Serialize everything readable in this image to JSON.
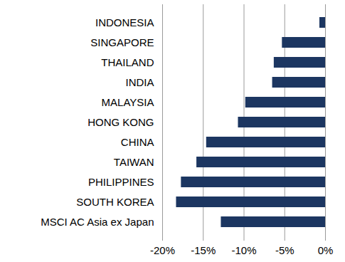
{
  "chart_data": {
    "type": "bar",
    "orientation": "horizontal",
    "categories": [
      "INDONESIA",
      "SINGAPORE",
      "THAILAND",
      "INDIA",
      "MALAYSIA",
      "HONG KONG",
      "CHINA",
      "TAIWAN",
      "PHILIPPINES",
      "SOUTH KOREA",
      "MSCI AC Asia ex Japan"
    ],
    "values": [
      -0.7,
      -5.3,
      -6.3,
      -6.5,
      -9.8,
      -10.7,
      -14.6,
      -15.8,
      -17.7,
      -18.3,
      -12.8
    ],
    "color": "#1c3661",
    "xlim": [
      -20,
      0
    ],
    "xticks": [
      {
        "value": -20,
        "label": "-20%"
      },
      {
        "value": -15,
        "label": "-15%"
      },
      {
        "value": -10,
        "label": "-10%"
      },
      {
        "value": -5,
        "label": "-5%"
      },
      {
        "value": 0,
        "label": "0%"
      }
    ],
    "grid": true
  }
}
